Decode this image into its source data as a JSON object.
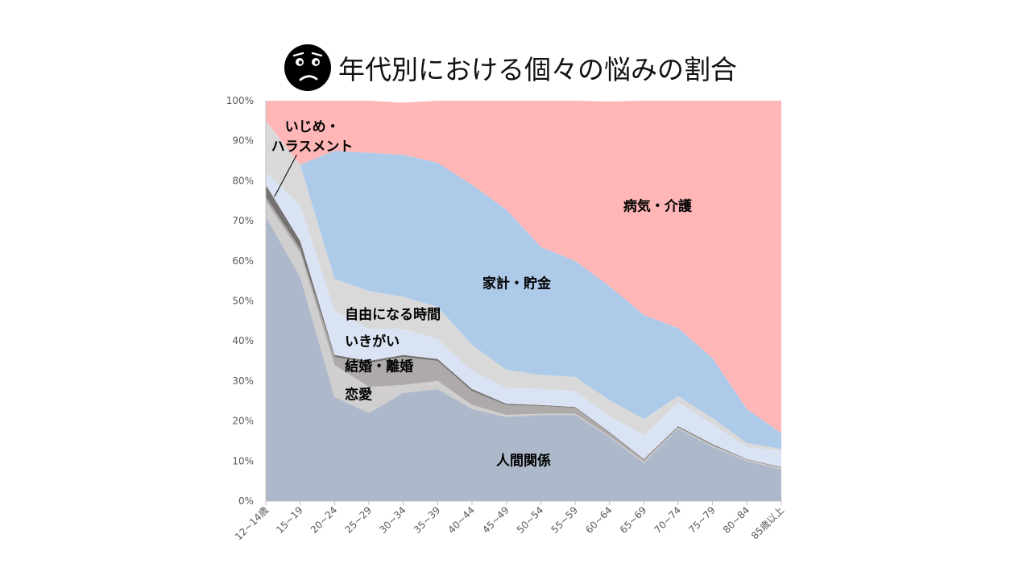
{
  "title": "年代別における個々の悩みの割合",
  "icon": "worried-face-icon",
  "colors": {
    "human_relations": "#adb9ca",
    "love": "#d0cece",
    "marriage_divorce": "#aeaaaa",
    "harassment": "#767171",
    "life_purpose": "#dae3f3",
    "free_time": "#d9d9d9",
    "household_savings": "#aecae9",
    "illness_care": "#ffb6b7"
  },
  "chart_data": {
    "type": "area",
    "stacked": true,
    "x": [
      "12~14歳",
      "15~19",
      "20~24",
      "25~29",
      "30~34",
      "35~39",
      "40~44",
      "45~49",
      "50~54",
      "55~59",
      "60~64",
      "65~69",
      "70~74",
      "75~79",
      "80~84",
      "85歳以上"
    ],
    "ylim": [
      0,
      100
    ],
    "yticks": [
      "0%",
      "10%",
      "20%",
      "30%",
      "40%",
      "50%",
      "60%",
      "70%",
      "80%",
      "90%",
      "100%"
    ],
    "grid": false,
    "legend": "none",
    "series": [
      {
        "key": "human_relations",
        "name": "人間関係",
        "values": [
          71,
          56,
          26,
          22,
          27,
          28,
          23,
          21,
          21.5,
          21.5,
          16,
          9.5,
          18,
          13.5,
          10,
          8
        ]
      },
      {
        "key": "love",
        "name": "恋愛",
        "values": [
          4,
          6,
          8,
          6.5,
          2,
          2,
          1,
          0.5,
          0.3,
          0.3,
          0.2,
          0.3,
          0.2,
          0.2,
          0.2,
          0.2
        ]
      },
      {
        "key": "marriage_divorce",
        "name": "結婚・離婚",
        "values": [
          1,
          1,
          2,
          6,
          7,
          5,
          3.5,
          2.5,
          2,
          1.5,
          0.8,
          0.5,
          0.3,
          0.3,
          0.2,
          0.2
        ]
      },
      {
        "key": "harassment",
        "name": "いじめ・ハラスメント",
        "values": [
          3,
          2,
          0.5,
          0.5,
          0.5,
          0.5,
          0.5,
          0.3,
          0.2,
          0.2,
          0.2,
          0.2,
          0.2,
          0.2,
          0.1,
          0.1
        ]
      },
      {
        "key": "life_purpose",
        "name": "いきがい",
        "values": [
          3,
          9,
          11,
          8,
          6.5,
          5,
          4.5,
          4,
          4,
          4,
          4,
          6,
          6,
          5,
          3,
          4
        ]
      },
      {
        "key": "free_time",
        "name": "自由になる時間",
        "values": [
          13,
          10,
          8,
          9.5,
          8,
          8,
          6.5,
          4.5,
          3.5,
          3.5,
          4,
          4,
          1.5,
          1.5,
          1,
          0.5
        ]
      },
      {
        "key": "household_savings",
        "name": "家計・貯金",
        "values": [
          0,
          0,
          32,
          34.5,
          35.5,
          36,
          40,
          40,
          32,
          29,
          28.5,
          26,
          17,
          15,
          8.5,
          4
        ]
      },
      {
        "key": "illness_care",
        "name": "病気・介護",
        "values": [
          5,
          16,
          12.5,
          13,
          13,
          15.5,
          21,
          27.2,
          36.5,
          40,
          46.1,
          53.5,
          56.8,
          64.3,
          77,
          83
        ]
      }
    ]
  }
}
